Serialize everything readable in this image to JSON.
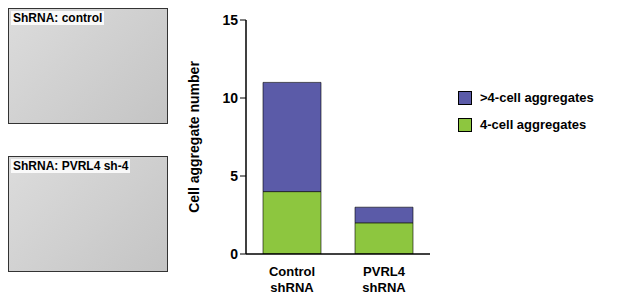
{
  "image_panels": [
    {
      "label": "ShRNA: control"
    },
    {
      "label": "ShRNA: PVRL4 sh-4"
    }
  ],
  "chart_data": {
    "type": "bar",
    "stacked": true,
    "ylabel": "Cell aggregate number",
    "categories": [
      "Control shRNA",
      "PVRL4 shRNA"
    ],
    "series": [
      {
        "name": "4-cell aggregates",
        "color": "#8dc63f",
        "values": [
          4,
          2
        ]
      },
      {
        "name": ">4-cell aggregates",
        "color": "#5b5ba8",
        "values": [
          7,
          1
        ]
      }
    ],
    "ylim": [
      0,
      15
    ],
    "yticks": [
      0,
      5,
      10,
      15
    ],
    "grid": false,
    "legend": "right"
  }
}
